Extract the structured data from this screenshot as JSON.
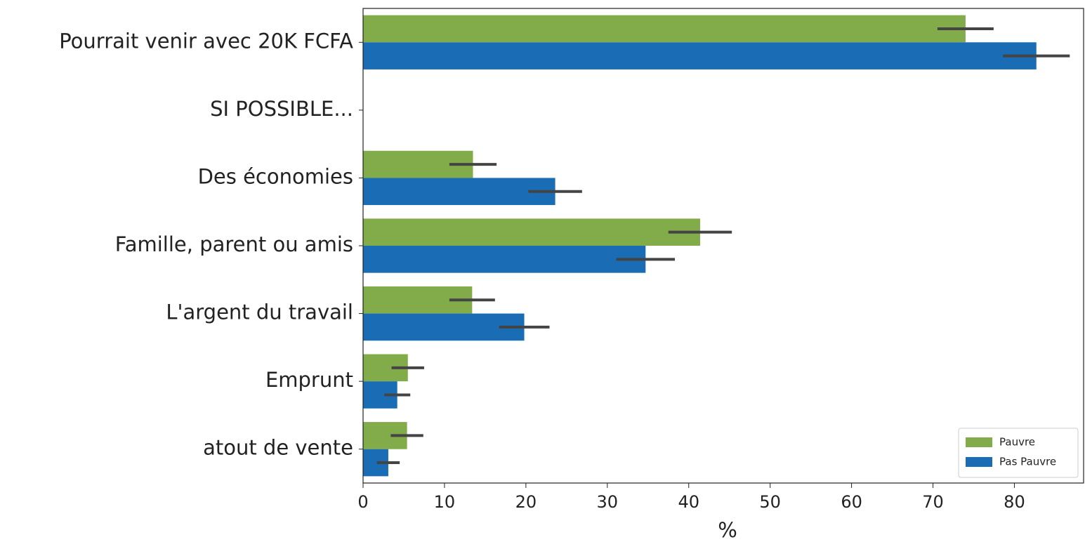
{
  "chart_data": {
    "type": "bar",
    "orientation": "horizontal",
    "categories": [
      "Pourrait venir avec 20K FCFA",
      "SI POSSIBLE...",
      "Des économies",
      "Famille, parent ou amis",
      "L'argent du travail",
      "Emprunt",
      "atout de vente"
    ],
    "series": [
      {
        "name": "Pauvre",
        "color": "#82ab4a",
        "values": [
          74.0,
          null,
          13.5,
          41.4,
          13.4,
          5.5,
          5.4
        ],
        "errors": [
          3.45,
          null,
          2.9,
          3.9,
          2.8,
          2.0,
          2.0
        ]
      },
      {
        "name": "Pas Pauvre",
        "color": "#1a6db5",
        "values": [
          82.7,
          null,
          23.6,
          34.7,
          19.8,
          4.2,
          3.1
        ],
        "errors": [
          4.1,
          null,
          3.3,
          3.6,
          3.1,
          1.6,
          1.4
        ]
      }
    ],
    "xlabel": "%",
    "xlim": [
      0,
      88.5
    ],
    "xticks": [
      0,
      10,
      20,
      30,
      40,
      50,
      60,
      70,
      80
    ],
    "legend": "lower right",
    "grid": false
  }
}
